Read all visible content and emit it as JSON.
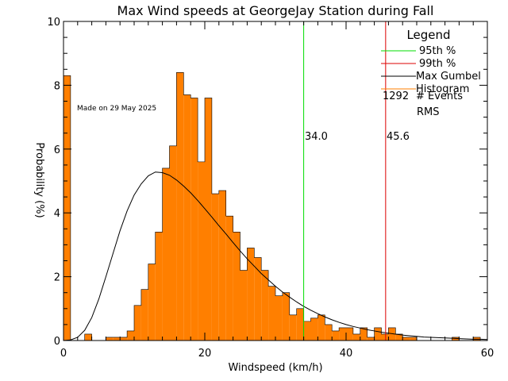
{
  "chart_data": {
    "type": "bar",
    "title": "Max Wind speeds at GeorgeJay Station during Fall",
    "xlabel": "Windspeed (km/h)",
    "ylabel": "Probability  (%)",
    "xlim": [
      0,
      60
    ],
    "ylim": [
      0,
      10
    ],
    "xticks": [
      0,
      20,
      40,
      60
    ],
    "yticks": [
      0,
      2,
      4,
      6,
      8,
      10
    ],
    "watermark": "Made on 29 May 2025",
    "histogram": {
      "bin_width": 1,
      "bin_starts": [
        0,
        1,
        2,
        3,
        4,
        5,
        6,
        7,
        8,
        9,
        10,
        11,
        12,
        13,
        14,
        15,
        16,
        17,
        18,
        19,
        20,
        21,
        22,
        23,
        24,
        25,
        26,
        27,
        28,
        29,
        30,
        31,
        32,
        33,
        34,
        35,
        36,
        37,
        38,
        39,
        40,
        41,
        42,
        43,
        44,
        45,
        46,
        47,
        48,
        49,
        50,
        51,
        52,
        53,
        54,
        55,
        56,
        57,
        58,
        59
      ],
      "values": [
        8.3,
        0,
        0,
        0.2,
        0,
        0,
        0.1,
        0.1,
        0.1,
        0.3,
        1.1,
        1.6,
        2.4,
        3.4,
        5.4,
        6.1,
        8.4,
        7.7,
        7.6,
        5.6,
        7.6,
        4.6,
        4.7,
        3.9,
        3.4,
        2.2,
        2.9,
        2.6,
        2.2,
        1.7,
        1.4,
        1.5,
        0.8,
        1,
        0.6,
        0.7,
        0.8,
        0.5,
        0.3,
        0.4,
        0.4,
        0.2,
        0.4,
        0.1,
        0.4,
        0.2,
        0.4,
        0.2,
        0.1,
        0.1,
        0,
        0,
        0,
        0,
        0,
        0.1,
        0,
        0,
        0.1,
        0
      ]
    },
    "gumbel": {
      "name": "Max Gumbel",
      "x": [
        0,
        1,
        2,
        3,
        4,
        5,
        6,
        7,
        8,
        9,
        10,
        11,
        12,
        13,
        14,
        15,
        16,
        17,
        18,
        19,
        20,
        21,
        22,
        23,
        24,
        25,
        26,
        27,
        28,
        29,
        30,
        31,
        32,
        33,
        34,
        35,
        36,
        37,
        38,
        39,
        40,
        41,
        42,
        43,
        44,
        45,
        46,
        47,
        48,
        49,
        50,
        51,
        52,
        53,
        54,
        55,
        56,
        57,
        58,
        59,
        60
      ],
      "y": [
        0.0,
        0.02,
        0.1,
        0.32,
        0.72,
        1.3,
        2.0,
        2.72,
        3.44,
        4.06,
        4.56,
        4.91,
        5.16,
        5.28,
        5.26,
        5.18,
        5.03,
        4.84,
        4.63,
        4.39,
        4.13,
        3.87,
        3.6,
        3.34,
        3.07,
        2.81,
        2.56,
        2.33,
        2.1,
        1.9,
        1.7,
        1.52,
        1.36,
        1.21,
        1.07,
        0.95,
        0.84,
        0.74,
        0.65,
        0.57,
        0.5,
        0.44,
        0.39,
        0.34,
        0.3,
        0.26,
        0.23,
        0.2,
        0.17,
        0.15,
        0.13,
        0.11,
        0.1,
        0.09,
        0.08,
        0.07,
        0.06,
        0.05,
        0.04,
        0.04,
        0.03
      ]
    },
    "p95": {
      "value": 34.0,
      "label": "34.0"
    },
    "p99": {
      "value": 45.6,
      "label": "45.6"
    },
    "legend": {
      "title": "Legend",
      "placement": "top-right",
      "items": [
        {
          "label": "95th %",
          "color": "#00dd00"
        },
        {
          "label": "99th %",
          "color": "#dd0000"
        },
        {
          "label": "Max Gumbel",
          "color": "#000000"
        },
        {
          "label": "Histogram",
          "color": "#ff7f00"
        }
      ],
      "events_count": "1292",
      "events_label": "# Events",
      "rms_label": "RMS"
    },
    "colors": {
      "histogram_fill": "#ff7f00",
      "p95": "#00dd00",
      "p99": "#dd0000",
      "gumbel": "#000000",
      "watermark": "#bbbbbb"
    }
  }
}
